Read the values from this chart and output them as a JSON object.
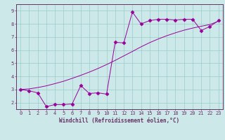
{
  "xlabel": "Windchill (Refroidissement éolien,°C)",
  "background_color": "#cce8e8",
  "grid_color": "#99cccc",
  "line_color": "#990099",
  "spine_color": "#663366",
  "tick_color": "#663366",
  "x_ticks": [
    0,
    1,
    2,
    3,
    4,
    5,
    6,
    7,
    8,
    9,
    10,
    11,
    12,
    13,
    14,
    15,
    16,
    17,
    18,
    19,
    20,
    21,
    22,
    23
  ],
  "y_ticks": [
    2,
    3,
    4,
    5,
    6,
    7,
    8,
    9
  ],
  "ylim": [
    1.5,
    9.5
  ],
  "xlim": [
    -0.5,
    23.5
  ],
  "series1_x": [
    0,
    1,
    2,
    3,
    4,
    5,
    6,
    7,
    8,
    9,
    10,
    11,
    12,
    13,
    14,
    15,
    16,
    17,
    18,
    19,
    20,
    21,
    22,
    23
  ],
  "series1_y": [
    3.0,
    2.9,
    2.75,
    1.7,
    1.85,
    1.85,
    1.9,
    3.3,
    2.7,
    2.75,
    2.65,
    6.6,
    6.55,
    8.9,
    8.0,
    8.25,
    8.35,
    8.35,
    8.3,
    8.35,
    8.35,
    7.5,
    7.8,
    8.25
  ],
  "series2_x": [
    0,
    1,
    2,
    3,
    4,
    5,
    6,
    7,
    8,
    9,
    10,
    11,
    12,
    13,
    14,
    15,
    16,
    17,
    18,
    19,
    20,
    21,
    22,
    23
  ],
  "series2_y": [
    3.0,
    3.05,
    3.15,
    3.28,
    3.45,
    3.63,
    3.85,
    4.08,
    4.33,
    4.6,
    4.9,
    5.22,
    5.56,
    5.9,
    6.25,
    6.57,
    6.85,
    7.1,
    7.32,
    7.52,
    7.68,
    7.82,
    7.95,
    8.2
  ],
  "tick_fontsize": 5,
  "xlabel_fontsize": 5.5,
  "linewidth": 0.7,
  "marker_size": 2.5,
  "marker_style": "D"
}
